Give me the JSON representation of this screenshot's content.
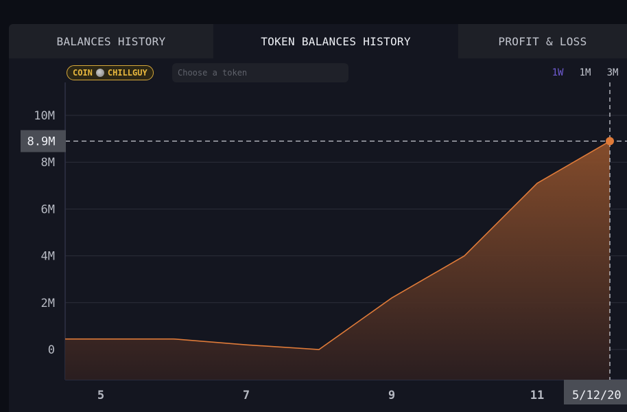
{
  "tabs": [
    {
      "label": "BALANCES HISTORY",
      "active": false
    },
    {
      "label": "TOKEN BALANCES HISTORY",
      "active": true
    },
    {
      "label": "PROFIT & LOSS",
      "active": false
    }
  ],
  "filter": {
    "badge_prefix": "COIN",
    "badge_token": "CHILLGUY",
    "badge_icon": "chillguy-coin-icon",
    "placeholder": "Choose a token"
  },
  "ranges": [
    {
      "label": "1W",
      "active": true
    },
    {
      "label": "1M",
      "active": false
    },
    {
      "label": "3M",
      "active": false
    }
  ],
  "colors": {
    "accent": "#6f5bd1",
    "line": "#e07b39",
    "badge": "#e8b83e"
  },
  "crosshair": {
    "y_label": "8.9M",
    "x_label": "5/12/20"
  },
  "chart_data": {
    "type": "area",
    "x": [
      4,
      5,
      6,
      7,
      8,
      9,
      10,
      11,
      12
    ],
    "values": [
      450000,
      450000,
      450000,
      200000,
      0,
      2200000,
      4000000,
      7100000,
      8900000
    ],
    "y_ticks": [
      {
        "v": 0,
        "label": "0"
      },
      {
        "v": 2000000,
        "label": "2M"
      },
      {
        "v": 4000000,
        "label": "4M"
      },
      {
        "v": 6000000,
        "label": "6M"
      },
      {
        "v": 8000000,
        "label": "8M"
      },
      {
        "v": 10000000,
        "label": "10M"
      }
    ],
    "x_ticks": [
      {
        "v": 5,
        "label": "5"
      },
      {
        "v": 7,
        "label": "7"
      },
      {
        "v": 9,
        "label": "9"
      },
      {
        "v": 11,
        "label": "11"
      }
    ],
    "ylim": [
      -1300000,
      11500000
    ],
    "xlim": [
      4.5,
      12.5
    ],
    "grid": true,
    "highlight_point": {
      "x": 12,
      "value": 8900000
    }
  }
}
